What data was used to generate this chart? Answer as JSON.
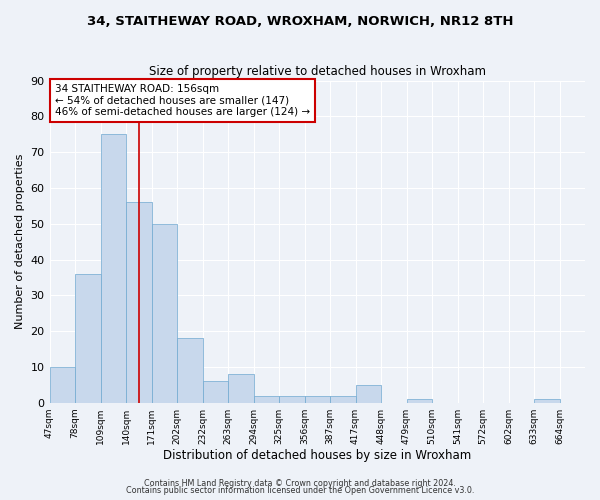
{
  "title": "34, STAITHEWAY ROAD, WROXHAM, NORWICH, NR12 8TH",
  "subtitle": "Size of property relative to detached houses in Wroxham",
  "xlabel": "Distribution of detached houses by size in Wroxham",
  "ylabel": "Number of detached properties",
  "bar_color": "#c8d8ec",
  "bar_edge_color": "#6fa8d0",
  "bin_labels": [
    "47sqm",
    "78sqm",
    "109sqm",
    "140sqm",
    "171sqm",
    "202sqm",
    "232sqm",
    "263sqm",
    "294sqm",
    "325sqm",
    "356sqm",
    "387sqm",
    "417sqm",
    "448sqm",
    "479sqm",
    "510sqm",
    "541sqm",
    "572sqm",
    "602sqm",
    "633sqm",
    "664sqm"
  ],
  "bar_heights": [
    10,
    36,
    75,
    56,
    50,
    18,
    6,
    8,
    2,
    2,
    2,
    2,
    5,
    0,
    1,
    0,
    0,
    0,
    0,
    1,
    0
  ],
  "ylim": [
    0,
    90
  ],
  "yticks": [
    0,
    10,
    20,
    30,
    40,
    50,
    60,
    70,
    80,
    90
  ],
  "red_line_x": 3.5,
  "annotation_text": "34 STAITHEWAY ROAD: 156sqm\n← 54% of detached houses are smaller (147)\n46% of semi-detached houses are larger (124) →",
  "annotation_box_color": "#ffffff",
  "annotation_box_edge_color": "#cc0000",
  "red_line_color": "#cc0000",
  "footer1": "Contains HM Land Registry data © Crown copyright and database right 2024.",
  "footer2": "Contains public sector information licensed under the Open Government Licence v3.0.",
  "background_color": "#eef2f8",
  "grid_color": "#ffffff",
  "grid_linewidth": 0.8
}
